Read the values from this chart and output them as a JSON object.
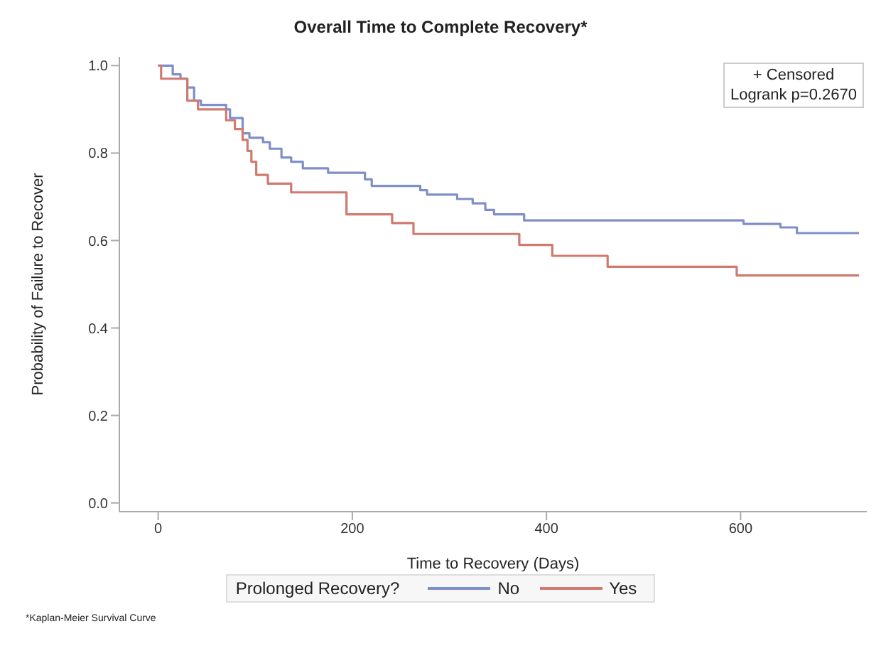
{
  "chart_data": {
    "type": "step",
    "title": "Overall Time to Complete Recovery*",
    "xlabel": "Time to Recovery (Days)",
    "ylabel": "Probability of Failure to Recover",
    "legend_title": "Prolonged Recovery?",
    "legend": "bottom",
    "grid": false,
    "marker": "none",
    "line_style": "solid",
    "xlim": [
      -40,
      730
    ],
    "xticks": [
      0,
      200,
      400,
      600
    ],
    "ylim": [
      -0.02,
      1.02
    ],
    "yticks": [
      {
        "value": 0,
        "label": "0.0"
      },
      {
        "value": 0.2,
        "label": "0.2"
      },
      {
        "value": 0.4,
        "label": "0.4"
      },
      {
        "value": 0.6,
        "label": "0.6"
      },
      {
        "value": 0.8,
        "label": "0.8"
      },
      {
        "value": 1,
        "label": "1.0"
      }
    ],
    "series": [
      {
        "name": "No",
        "color": "#7f8fc8",
        "x": [
          0,
          15,
          23,
          30,
          37,
          44,
          70,
          74,
          87,
          94,
          108,
          115,
          127,
          137,
          149,
          175,
          213,
          220,
          270,
          277,
          308,
          324,
          337,
          346,
          377,
          603,
          641,
          658,
          722
        ],
        "values": [
          1.0,
          0.98,
          0.97,
          0.95,
          0.92,
          0.91,
          0.9,
          0.88,
          0.845,
          0.835,
          0.825,
          0.81,
          0.79,
          0.78,
          0.765,
          0.755,
          0.74,
          0.725,
          0.715,
          0.705,
          0.695,
          0.685,
          0.67,
          0.66,
          0.646,
          0.638,
          0.63,
          0.617,
          0.617
        ]
      },
      {
        "name": "Yes",
        "color": "#d07a70",
        "x": [
          0,
          3,
          30,
          41,
          70,
          79,
          87,
          92,
          96,
          101,
          113,
          137,
          194,
          241,
          263,
          372,
          406,
          463,
          596,
          722
        ],
        "values": [
          1.0,
          0.97,
          0.92,
          0.9,
          0.875,
          0.855,
          0.83,
          0.805,
          0.78,
          0.75,
          0.73,
          0.71,
          0.66,
          0.64,
          0.615,
          0.59,
          0.565,
          0.54,
          0.52,
          0.52
        ]
      }
    ],
    "annotations": [
      "+ Censored",
      "Logrank p=0.2670",
      "*Kaplan-Meier Survival Curve"
    ]
  }
}
